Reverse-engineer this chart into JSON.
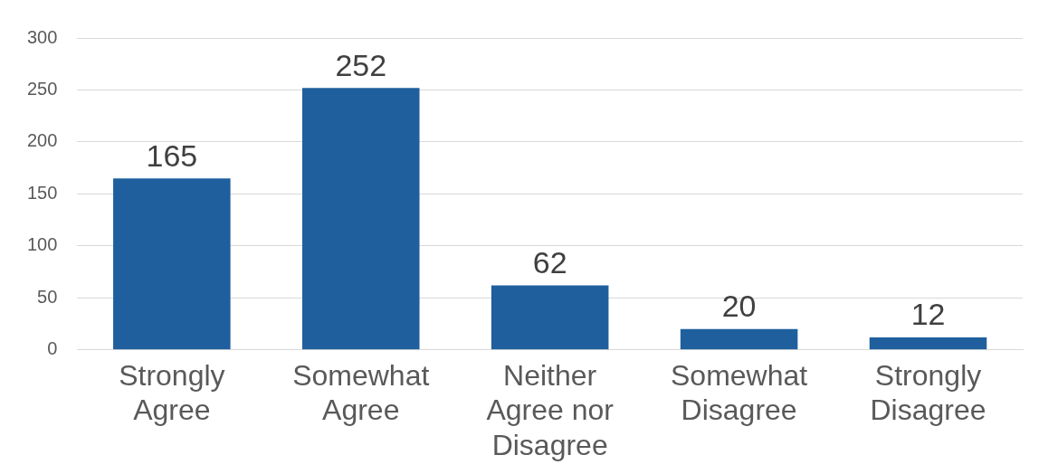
{
  "chart_data": {
    "type": "bar",
    "categories": [
      "Strongly Agree",
      "Somewhat Agree",
      "Neither Agree nor Disagree",
      "Somewhat Disagree",
      "Strongly Disagree"
    ],
    "values": [
      165,
      252,
      62,
      20,
      12
    ],
    "color": "#1f5f9e",
    "ylim": [
      0,
      300
    ],
    "yticks": [
      0,
      50,
      100,
      150,
      200,
      250,
      300
    ],
    "grid": "y",
    "data_labels": true
  }
}
